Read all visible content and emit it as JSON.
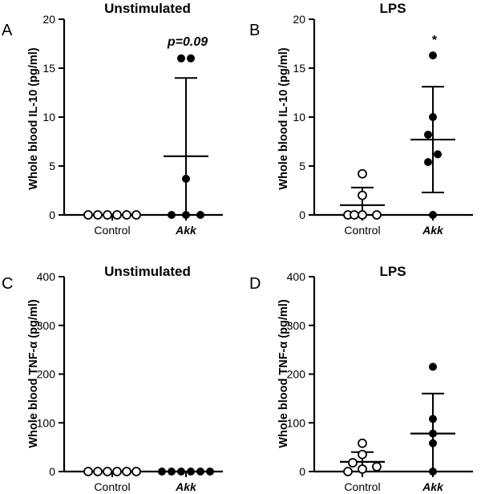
{
  "chart_data": [
    {
      "panel": "A",
      "title": "Unstimulated",
      "type": "scatter",
      "ylabel": "Whole blood IL-10 (pg/ml)",
      "ylim": [
        0,
        20
      ],
      "yticks": [
        0,
        5,
        10,
        15,
        20
      ],
      "categories": [
        "Control",
        "Akk"
      ],
      "series": [
        {
          "name": "Control",
          "marker": "open",
          "values": [
            0,
            0,
            0,
            0,
            0,
            0
          ],
          "mean": 0,
          "sd_upper": 0,
          "sd_lower": 0
        },
        {
          "name": "Akk",
          "marker": "filled",
          "values": [
            0,
            0,
            0,
            3.7,
            16,
            16
          ],
          "mean": 6.0,
          "sd_upper": 14.0,
          "sd_lower": 0
        }
      ],
      "annotation": "p=0.09"
    },
    {
      "panel": "B",
      "title": "LPS",
      "type": "scatter",
      "ylabel": "Whole blood IL-10 (pg/ml)",
      "ylim": [
        0,
        20
      ],
      "yticks": [
        0,
        5,
        10,
        15,
        20
      ],
      "categories": [
        "Control",
        "Akk"
      ],
      "series": [
        {
          "name": "Control",
          "marker": "open",
          "values": [
            0,
            0,
            0,
            0,
            2.0,
            4.2
          ],
          "mean": 1.0,
          "sd_upper": 2.8,
          "sd_lower": 0
        },
        {
          "name": "Akk",
          "marker": "filled",
          "values": [
            0,
            5.4,
            6.2,
            8.2,
            10.0,
            16.3
          ],
          "mean": 7.7,
          "sd_upper": 13.1,
          "sd_lower": 2.3
        }
      ],
      "annotation": "*"
    },
    {
      "panel": "C",
      "title": "Unstimulated",
      "type": "scatter",
      "ylabel": "Whole blood TNF-α (pg/ml)",
      "ylim": [
        0,
        400
      ],
      "yticks": [
        0,
        100,
        200,
        300,
        400
      ],
      "categories": [
        "Control",
        "Akk"
      ],
      "series": [
        {
          "name": "Control",
          "marker": "open",
          "values": [
            0,
            0,
            0,
            0,
            0,
            0
          ],
          "mean": 0,
          "sd_upper": 0,
          "sd_lower": 0
        },
        {
          "name": "Akk",
          "marker": "filled",
          "values": [
            0,
            0,
            0,
            0,
            0,
            0
          ],
          "mean": 0,
          "sd_upper": 0,
          "sd_lower": 0
        }
      ],
      "annotation": ""
    },
    {
      "panel": "D",
      "title": "LPS",
      "type": "scatter",
      "ylabel": "Whole blood TNF-α (pg/ml)",
      "ylim": [
        0,
        400
      ],
      "yticks": [
        0,
        100,
        200,
        300,
        400
      ],
      "categories": [
        "Control",
        "Akk"
      ],
      "series": [
        {
          "name": "Control",
          "marker": "open",
          "values": [
            0,
            5,
            10,
            18,
            35,
            58
          ],
          "mean": 20,
          "sd_upper": 40,
          "sd_lower": 0
        },
        {
          "name": "Akk",
          "marker": "filled",
          "values": [
            0,
            58,
            78,
            108,
            215
          ],
          "mean": 78,
          "sd_upper": 160,
          "sd_lower": 0
        },
        {
          "name": "",
          "marker": "filled",
          "values": [],
          "mean": null
        }
      ],
      "annotation": ""
    }
  ],
  "colors": {
    "ink": "#000000",
    "background": "#ffffff"
  }
}
